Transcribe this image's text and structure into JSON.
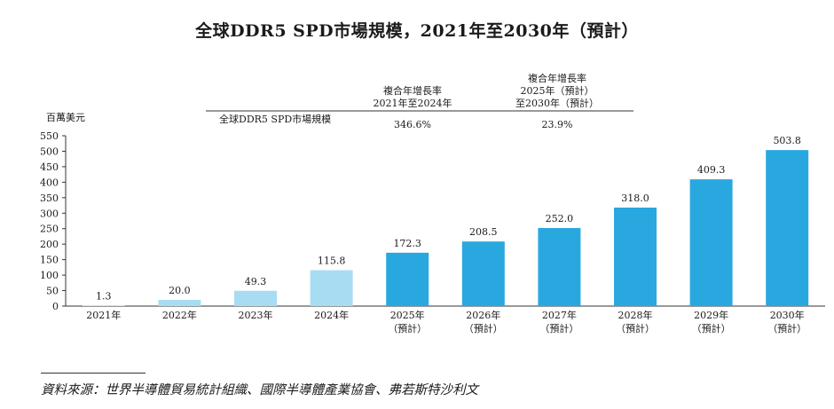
{
  "title": "全球DDR5 SPD市場規模，2021年至2030年（預計）",
  "chart_data": {
    "type": "bar",
    "title": "全球DDR5 SPD市場規模，2021年至2030年（預計）",
    "ylabel": "百萬美元",
    "xlabel": "",
    "ylim": [
      0,
      550
    ],
    "yticks": [
      0,
      50,
      100,
      150,
      200,
      250,
      300,
      350,
      400,
      450,
      500,
      550
    ],
    "categories": [
      {
        "year": "2021年",
        "note": ""
      },
      {
        "year": "2022年",
        "note": ""
      },
      {
        "year": "2023年",
        "note": ""
      },
      {
        "year": "2024年",
        "note": ""
      },
      {
        "year": "2025年",
        "note": "（預計）"
      },
      {
        "year": "2026年",
        "note": "（預計）"
      },
      {
        "year": "2027年",
        "note": "（預計）"
      },
      {
        "year": "2028年",
        "note": "（預計）"
      },
      {
        "year": "2029年",
        "note": "（預計）"
      },
      {
        "year": "2030年",
        "note": "（預計）"
      }
    ],
    "series": [
      {
        "name": "全球DDR5 SPD市場規模",
        "values": [
          1.3,
          20.0,
          49.3,
          115.8,
          172.3,
          208.5,
          252.0,
          318.0,
          409.3,
          503.8
        ],
        "labels": [
          "1.3",
          "20.0",
          "49.3",
          "115.8",
          "172.3",
          "208.5",
          "252.0",
          "318.0",
          "409.3",
          "503.8"
        ]
      }
    ],
    "colors": {
      "historical": "#a8dcf3",
      "forecast": "#29a8e0"
    },
    "forecast_start_index": 4,
    "cagr_table": {
      "row_label": "全球DDR5 SPD市場規模",
      "columns": [
        {
          "header_lines": [
            "複合年增長率",
            "2021年至2024年"
          ],
          "value": "346.6%"
        },
        {
          "header_lines": [
            "複合年增長率",
            "2025年（預計）",
            "至2030年（預計）"
          ],
          "value": "23.9%"
        }
      ]
    }
  },
  "source": "資料來源：世界半導體貿易統計組織、國際半導體產業協會、弗若斯特沙利文"
}
